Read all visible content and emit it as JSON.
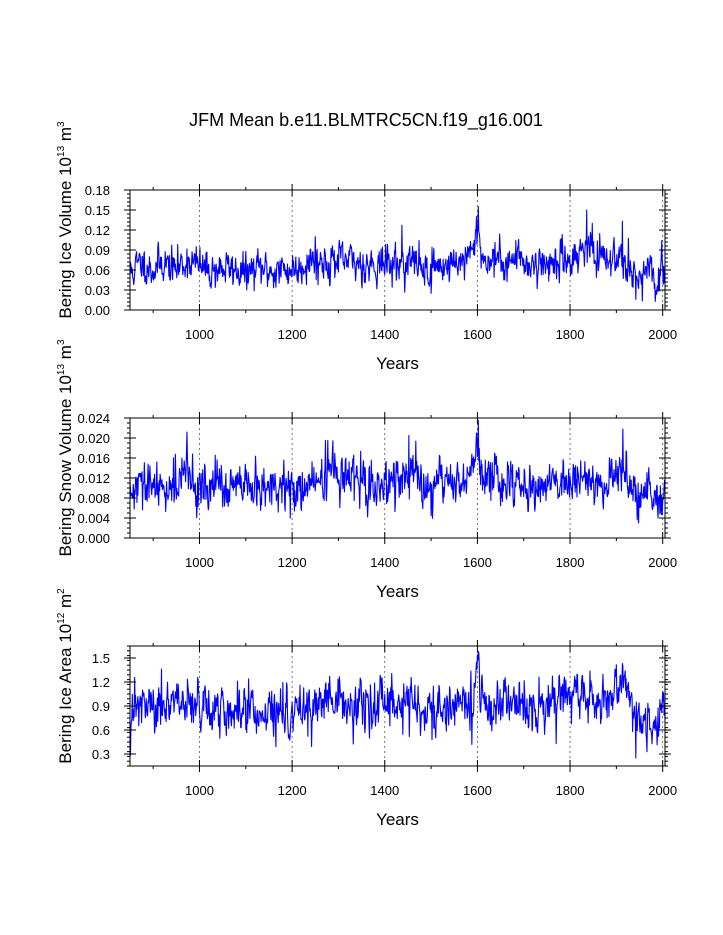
{
  "title": "JFM Mean b.e11.BLMTRC5CN.f19_g16.001",
  "colors": {
    "series": "#0000ff",
    "axes": "#000000",
    "grid": "#555555"
  },
  "chart_data": [
    {
      "type": "line",
      "title": "JFM Mean b.e11.BLMTRC5CN.f19_g16.001",
      "xlabel": "Years",
      "ylabel": {
        "text": "Bering Ice Volume 10",
        "exp": "13",
        "unit": " m",
        "unit_exp": "3"
      },
      "xlim": [
        850,
        2005
      ],
      "ylim": [
        0,
        0.18
      ],
      "xticks": [
        "1000",
        "1200",
        "1400",
        "1600",
        "1800",
        "2000"
      ],
      "yticks": [
        "0.00",
        "0.03",
        "0.06",
        "0.09",
        "0.12",
        "0.15",
        "0.18"
      ],
      "grid": "vertical dashed at major x ticks",
      "series": [
        {
          "name": "Bering Ice Volume",
          "anchors": [
            [
              850,
              0.055
            ],
            [
              875,
              0.072
            ],
            [
              900,
              0.06
            ],
            [
              920,
              0.072
            ],
            [
              950,
              0.062
            ],
            [
              975,
              0.075
            ],
            [
              1000,
              0.066
            ],
            [
              1020,
              0.058
            ],
            [
              1050,
              0.063
            ],
            [
              1080,
              0.06
            ],
            [
              1100,
              0.055
            ],
            [
              1130,
              0.062
            ],
            [
              1160,
              0.058
            ],
            [
              1190,
              0.06
            ],
            [
              1210,
              0.062
            ],
            [
              1240,
              0.076
            ],
            [
              1260,
              0.072
            ],
            [
              1300,
              0.073
            ],
            [
              1330,
              0.072
            ],
            [
              1360,
              0.068
            ],
            [
              1400,
              0.07
            ],
            [
              1430,
              0.068
            ],
            [
              1460,
              0.074
            ],
            [
              1490,
              0.06
            ],
            [
              1510,
              0.066
            ],
            [
              1540,
              0.067
            ],
            [
              1560,
              0.075
            ],
            [
              1575,
              0.073
            ],
            [
              1590,
              0.085
            ],
            [
              1600,
              0.128
            ],
            [
              1606,
              0.1
            ],
            [
              1615,
              0.068
            ],
            [
              1630,
              0.078
            ],
            [
              1660,
              0.072
            ],
            [
              1690,
              0.078
            ],
            [
              1720,
              0.068
            ],
            [
              1750,
              0.07
            ],
            [
              1780,
              0.072
            ],
            [
              1800,
              0.078
            ],
            [
              1820,
              0.084
            ],
            [
              1835,
              0.104
            ],
            [
              1850,
              0.08
            ],
            [
              1870,
              0.072
            ],
            [
              1890,
              0.076
            ],
            [
              1910,
              0.084
            ],
            [
              1920,
              0.078
            ],
            [
              1935,
              0.062
            ],
            [
              1950,
              0.045
            ],
            [
              1970,
              0.055
            ],
            [
              1990,
              0.04
            ],
            [
              2005,
              0.065
            ]
          ],
          "noise": 0.013,
          "spikes": [
            [
              1602,
              0.155
            ],
            [
              1598,
              0.14
            ],
            [
              1836,
              0.15
            ],
            [
              1848,
              0.13
            ],
            [
              1913,
              0.133
            ],
            [
              1942,
              0.016
            ],
            [
              1982,
              0.032
            ],
            [
              1250,
              0.11
            ],
            [
              1437,
              0.127
            ],
            [
              1500,
              0.025
            ]
          ]
        }
      ]
    },
    {
      "type": "line",
      "xlabel": "Years",
      "ylabel": {
        "text": "Bering Snow Volume 10",
        "exp": "13",
        "unit": " m",
        "unit_exp": "3"
      },
      "xlim": [
        850,
        2005
      ],
      "ylim": [
        0,
        0.024
      ],
      "xticks": [
        "1000",
        "1200",
        "1400",
        "1600",
        "1800",
        "2000"
      ],
      "yticks": [
        "0.000",
        "0.004",
        "0.008",
        "0.012",
        "0.016",
        "0.020",
        "0.024"
      ],
      "grid": "vertical dashed at major x ticks",
      "series": [
        {
          "name": "Bering Snow Volume",
          "anchors": [
            [
              850,
              0.0085
            ],
            [
              880,
              0.0105
            ],
            [
              910,
              0.0095
            ],
            [
              940,
              0.011
            ],
            [
              970,
              0.0125
            ],
            [
              1000,
              0.01
            ],
            [
              1030,
              0.0105
            ],
            [
              1060,
              0.01
            ],
            [
              1100,
              0.0098
            ],
            [
              1140,
              0.0095
            ],
            [
              1170,
              0.01
            ],
            [
              1200,
              0.0095
            ],
            [
              1230,
              0.0105
            ],
            [
              1260,
              0.0115
            ],
            [
              1290,
              0.0135
            ],
            [
              1320,
              0.012
            ],
            [
              1350,
              0.01
            ],
            [
              1380,
              0.011
            ],
            [
              1400,
              0.0108
            ],
            [
              1430,
              0.0125
            ],
            [
              1460,
              0.0115
            ],
            [
              1490,
              0.01
            ],
            [
              1520,
              0.011
            ],
            [
              1560,
              0.0115
            ],
            [
              1590,
              0.0135
            ],
            [
              1600,
              0.018
            ],
            [
              1606,
              0.014
            ],
            [
              1620,
              0.011
            ],
            [
              1650,
              0.012
            ],
            [
              1680,
              0.011
            ],
            [
              1710,
              0.0108
            ],
            [
              1740,
              0.01
            ],
            [
              1770,
              0.011
            ],
            [
              1800,
              0.012
            ],
            [
              1830,
              0.0125
            ],
            [
              1860,
              0.011
            ],
            [
              1890,
              0.0115
            ],
            [
              1910,
              0.014
            ],
            [
              1925,
              0.012
            ],
            [
              1945,
              0.008
            ],
            [
              1970,
              0.008
            ],
            [
              1990,
              0.007
            ],
            [
              2005,
              0.01
            ]
          ],
          "noise": 0.0022,
          "spikes": [
            [
              1602,
              0.0235
            ],
            [
              1598,
              0.021
            ],
            [
              1914,
              0.0218
            ],
            [
              1272,
              0.0195
            ],
            [
              973,
              0.0212
            ],
            [
              1452,
              0.0205
            ],
            [
              1948,
              0.003
            ],
            [
              1500,
              0.0045
            ],
            [
              1196,
              0.004
            ]
          ]
        }
      ]
    },
    {
      "type": "line",
      "xlabel": "Years",
      "ylabel": {
        "text": "Bering Ice Area 10",
        "exp": "12",
        "unit": " m",
        "unit_exp": "2"
      },
      "xlim": [
        850,
        2005
      ],
      "ylim": [
        0.15,
        1.65
      ],
      "xticks": [
        "1000",
        "1200",
        "1400",
        "1600",
        "1800",
        "2000"
      ],
      "yticks": [
        "0.3",
        "0.6",
        "0.9",
        "1.2",
        "1.5"
      ],
      "grid": "vertical dashed at major x ticks",
      "series": [
        {
          "name": "Bering Ice Area",
          "anchors": [
            [
              850,
              0.8
            ],
            [
              880,
              0.9
            ],
            [
              910,
              0.85
            ],
            [
              940,
              0.92
            ],
            [
              970,
              0.95
            ],
            [
              1000,
              0.9
            ],
            [
              1030,
              0.88
            ],
            [
              1060,
              0.85
            ],
            [
              1100,
              0.82
            ],
            [
              1140,
              0.85
            ],
            [
              1170,
              0.8
            ],
            [
              1200,
              0.8
            ],
            [
              1230,
              0.88
            ],
            [
              1260,
              0.95
            ],
            [
              1290,
              0.92
            ],
            [
              1320,
              0.9
            ],
            [
              1350,
              0.85
            ],
            [
              1380,
              0.9
            ],
            [
              1400,
              0.88
            ],
            [
              1430,
              0.92
            ],
            [
              1460,
              0.9
            ],
            [
              1490,
              0.82
            ],
            [
              1520,
              0.85
            ],
            [
              1560,
              0.9
            ],
            [
              1590,
              1.0
            ],
            [
              1600,
              1.38
            ],
            [
              1606,
              1.15
            ],
            [
              1620,
              0.85
            ],
            [
              1650,
              0.92
            ],
            [
              1680,
              0.9
            ],
            [
              1710,
              0.92
            ],
            [
              1740,
              0.85
            ],
            [
              1770,
              0.9
            ],
            [
              1800,
              1.0
            ],
            [
              1830,
              1.05
            ],
            [
              1860,
              0.95
            ],
            [
              1890,
              0.98
            ],
            [
              1910,
              1.1
            ],
            [
              1925,
              1.05
            ],
            [
              1945,
              0.75
            ],
            [
              1970,
              0.7
            ],
            [
              1990,
              0.65
            ],
            [
              2005,
              0.9
            ]
          ],
          "noise": 0.14,
          "spikes": [
            [
              1602,
              1.58
            ],
            [
              1598,
              1.45
            ],
            [
              1913,
              1.43
            ],
            [
              1942,
              0.25
            ],
            [
              1588,
              0.42
            ],
            [
              918,
              1.36
            ],
            [
              1502,
              0.48
            ],
            [
              1160,
              0.52
            ]
          ]
        }
      ]
    }
  ]
}
